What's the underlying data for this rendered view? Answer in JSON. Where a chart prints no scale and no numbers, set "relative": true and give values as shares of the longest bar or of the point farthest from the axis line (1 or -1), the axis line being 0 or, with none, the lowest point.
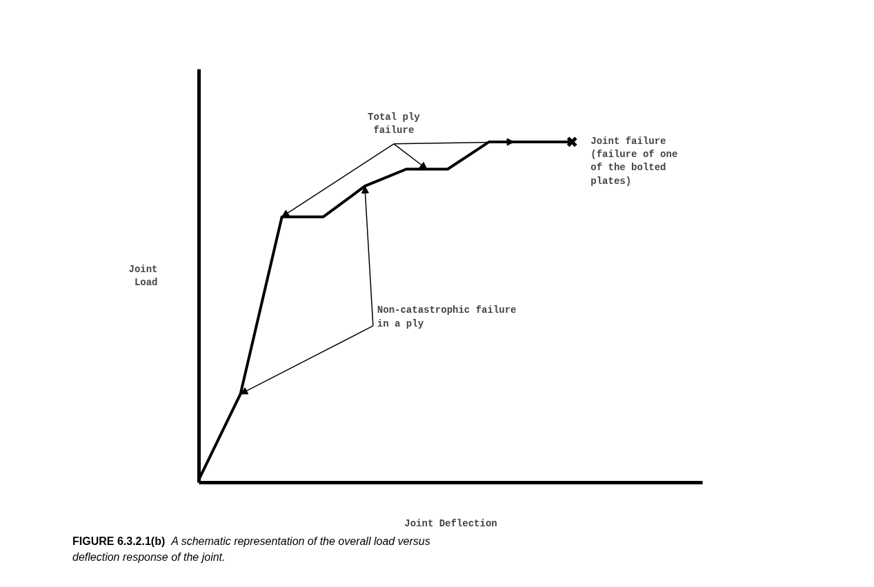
{
  "chart_data": {
    "type": "line",
    "relative": true,
    "xlabel": "Joint Deflection",
    "ylabel": "Joint\nLoad",
    "marker": "none",
    "line_style": "solid",
    "categories": [
      null,
      null,
      null,
      null,
      null,
      null,
      null,
      null,
      null,
      null
    ],
    "series": [
      {
        "color": "#000000",
        "values": [
          0.01,
          0.26,
          0.78,
          0.78,
          0.87,
          0.92,
          0.92,
          1,
          1,
          1
        ]
      }
    ],
    "annotations": [
      "Total ply\nfailure",
      "Non-catastrophic failure\nin a ply",
      "Joint failure\n(failure of one\nof the bolted\nplates)",
      "FIGURE 6.3.2.1(b)",
      "A schematic representation of the overall load versus deflection response of the joint."
    ]
  }
}
